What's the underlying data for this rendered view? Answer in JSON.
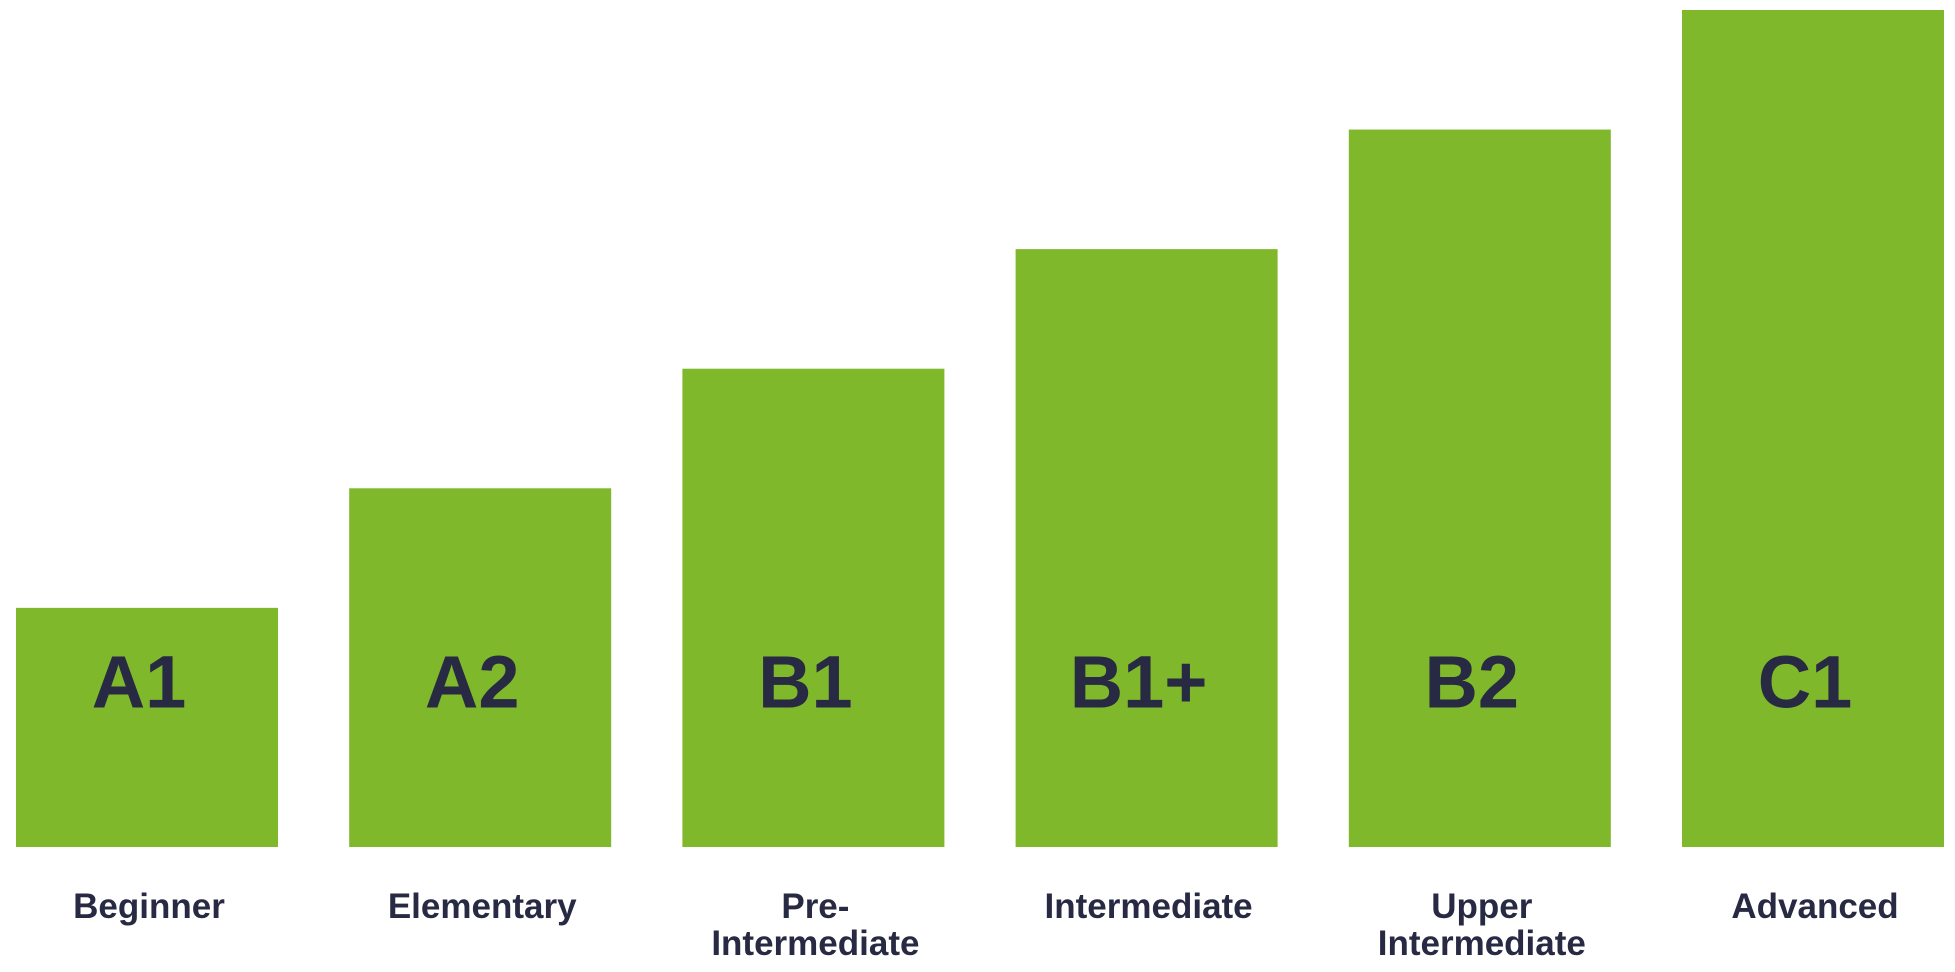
{
  "colors": {
    "bar": "#7fb82a",
    "text": "#272a42",
    "background": "#ffffff"
  },
  "chart_data": {
    "type": "bar",
    "categories": [
      "A1",
      "A2",
      "B1",
      "B1+",
      "B2",
      "C1"
    ],
    "bars": [
      {
        "code": "A1",
        "name_lines": [
          "Beginner"
        ],
        "value": 2
      },
      {
        "code": "A2",
        "name_lines": [
          "Elementary"
        ],
        "value": 3
      },
      {
        "code": "B1",
        "name_lines": [
          "Pre-",
          "Intermediate"
        ],
        "value": 4
      },
      {
        "code": "B1+",
        "name_lines": [
          "Intermediate"
        ],
        "value": 5
      },
      {
        "code": "B2",
        "name_lines": [
          "Upper",
          "Intermediate"
        ],
        "value": 6
      },
      {
        "code": "C1",
        "name_lines": [
          "Advanced"
        ],
        "value": 7
      }
    ],
    "values": [
      2,
      3,
      4,
      5,
      6,
      7
    ],
    "ylim": [
      0,
      7
    ],
    "grid": false,
    "legend": "none"
  }
}
